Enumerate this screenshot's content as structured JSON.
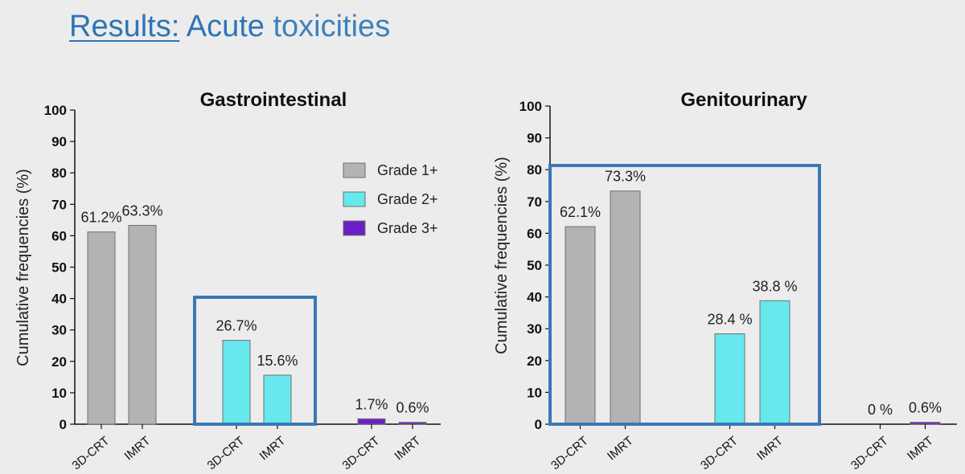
{
  "slide": {
    "title_part1": "Results:",
    "title_part2": "Acute",
    "title_part3": "toxicities"
  },
  "colors": {
    "grade1": "#b3b3b3",
    "grade2": "#66e8ec",
    "grade3": "#6a1fc9",
    "highlight_box": "#3a78b5"
  },
  "legend": [
    {
      "label": "Grade 1+",
      "color": "#b3b3b3"
    },
    {
      "label": "Grade 2+",
      "color": "#66e8ec"
    },
    {
      "label": "Grade 3+",
      "color": "#6a1fc9"
    }
  ],
  "chart_data": [
    {
      "type": "bar",
      "title": "Gastrointestinal",
      "ylabel": "Cumulative frequencies (%)",
      "ylim": [
        0,
        100
      ],
      "yticks": [
        "0",
        "10",
        "20",
        "30",
        "40",
        "50",
        "60",
        "70",
        "80",
        "90",
        "100"
      ],
      "legend_position": "top-right",
      "groups": [
        {
          "series": "Grade 1+",
          "bars": [
            {
              "category": "3D-CRT",
              "value": 61.2,
              "label": "61.2%"
            },
            {
              "category": "IMRT",
              "value": 63.3,
              "label": "63.3%"
            }
          ]
        },
        {
          "series": "Grade 2+",
          "bars": [
            {
              "category": "3D-CRT",
              "value": 26.7,
              "label": "26.7%"
            },
            {
              "category": "IMRT",
              "value": 15.6,
              "label": "15.6%"
            }
          ]
        },
        {
          "series": "Grade 3+",
          "bars": [
            {
              "category": "3D-CRT",
              "value": 1.7,
              "label": "1.7%"
            },
            {
              "category": "IMRT",
              "value": 0.6,
              "label": "0.6%"
            }
          ]
        }
      ],
      "highlight": "Grade 2+ group"
    },
    {
      "type": "bar",
      "title": "Genitourinary",
      "ylabel": "Cumulative frequencies (%)",
      "ylim": [
        0,
        100
      ],
      "yticks": [
        "0",
        "10",
        "20",
        "30",
        "40",
        "50",
        "60",
        "70",
        "80",
        "90",
        "100"
      ],
      "groups": [
        {
          "series": "Grade 1+",
          "bars": [
            {
              "category": "3D-CRT",
              "value": 62.1,
              "label": "62.1%"
            },
            {
              "category": "IMRT",
              "value": 73.3,
              "label": "73.3%"
            }
          ]
        },
        {
          "series": "Grade 2+",
          "bars": [
            {
              "category": "3D-CRT",
              "value": 28.4,
              "label": "28.4 %"
            },
            {
              "category": "IMRT",
              "value": 38.8,
              "label": "38.8 %"
            }
          ]
        },
        {
          "series": "Grade 3+",
          "bars": [
            {
              "category": "3D-CRT",
              "value": 0,
              "label": "0 %"
            },
            {
              "category": "IMRT",
              "value": 0.6,
              "label": "0.6%"
            }
          ]
        }
      ],
      "highlight": "Grade 1+ and Grade 2+ groups"
    }
  ]
}
